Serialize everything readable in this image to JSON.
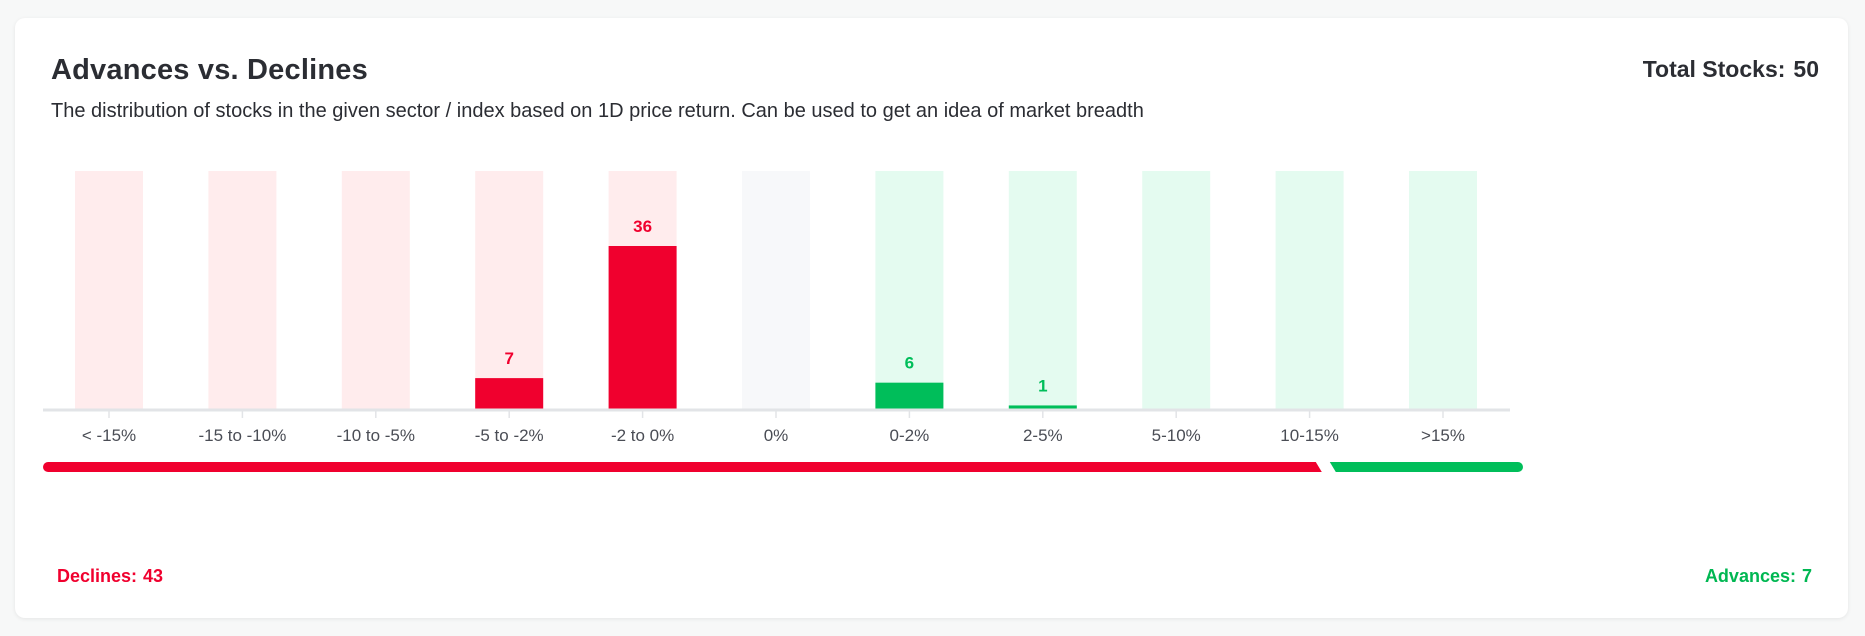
{
  "card": {
    "title": "Advances vs. Declines",
    "subtitle": "The distribution of stocks in the given sector / index based on 1D price return. Can be used to get an idea of market breadth",
    "total_label": "Total Stocks:",
    "total_value": "50"
  },
  "colors": {
    "decline": "#f0002e",
    "decline_bg": "#ffeced",
    "neutral_bg": "#f7f8fa",
    "advance": "#00be5a",
    "advance_bg": "#e4fbf0",
    "axis": "#e2e4e7",
    "tick_label": "#4a4d55"
  },
  "chart_data": {
    "type": "bar",
    "title": "Advances vs. Declines",
    "categories": [
      "< -15%",
      "-15 to -10%",
      "-10 to -5%",
      "-5 to -2%",
      "-2 to 0%",
      "0%",
      "0-2%",
      "2-5%",
      "5-10%",
      "10-15%",
      ">15%"
    ],
    "values": [
      0,
      0,
      0,
      7,
      36,
      0,
      6,
      1,
      0,
      0,
      0
    ],
    "category_kind": [
      "decline",
      "decline",
      "decline",
      "decline",
      "decline",
      "neutral",
      "advance",
      "advance",
      "advance",
      "advance",
      "advance"
    ],
    "ylim": [
      0,
      50
    ],
    "grid": false,
    "legend": "none"
  },
  "breadth": {
    "declines_label": "Declines:",
    "declines_value": 43,
    "advances_label": "Advances:",
    "advances_value": 7
  }
}
